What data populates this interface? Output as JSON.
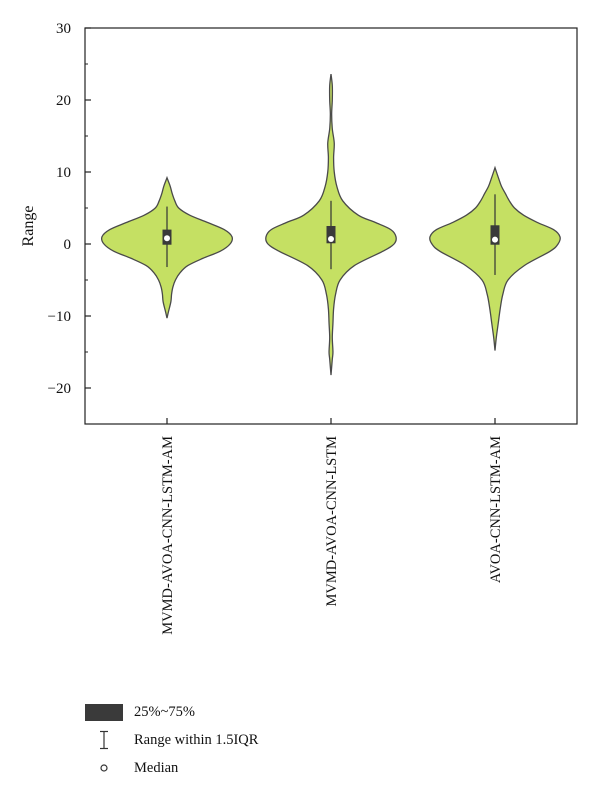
{
  "chart_data": {
    "type": "violin",
    "ylabel": "Range",
    "ylim": [
      -25,
      30
    ],
    "yticks": [
      -20,
      -10,
      0,
      10,
      20,
      30
    ],
    "fill_color": "#c5e063",
    "outline_color": "#4a4a4a",
    "box_color": "#3a3a3a",
    "categories": [
      "MVMD-AVOA-CNN-LSTM-AM",
      "MVMD-AVOA-CNN-LSTM",
      "AVOA-CNN-LSTM-AM"
    ],
    "series": [
      {
        "min": -10.3,
        "max": 9.2,
        "q1": -0.1,
        "q3": 2.0,
        "median": 0.8,
        "whisker_low": -3.2,
        "whisker_high": 5.2,
        "density": [
          [
            -10.3,
            0.0
          ],
          [
            -9.5,
            0.02
          ],
          [
            -8,
            0.06
          ],
          [
            -7,
            0.07
          ],
          [
            -6,
            0.09
          ],
          [
            -5,
            0.13
          ],
          [
            -4,
            0.2
          ],
          [
            -3,
            0.32
          ],
          [
            -2,
            0.55
          ],
          [
            -1,
            0.82
          ],
          [
            0,
            0.97
          ],
          [
            1,
            1.0
          ],
          [
            2,
            0.88
          ],
          [
            3,
            0.62
          ],
          [
            4,
            0.35
          ],
          [
            5,
            0.18
          ],
          [
            6,
            0.12
          ],
          [
            7,
            0.08
          ],
          [
            8,
            0.05
          ],
          [
            9.2,
            0.0
          ]
        ]
      },
      {
        "min": -18.2,
        "max": 23.6,
        "q1": 0.1,
        "q3": 2.5,
        "median": 0.7,
        "whisker_low": -3.5,
        "whisker_high": 6.0,
        "density": [
          [
            -18.2,
            0.0
          ],
          [
            -16,
            0.02
          ],
          [
            -15,
            0.03
          ],
          [
            -13,
            0.02
          ],
          [
            -11,
            0.03
          ],
          [
            -9,
            0.04
          ],
          [
            -7,
            0.07
          ],
          [
            -5,
            0.14
          ],
          [
            -3,
            0.36
          ],
          [
            -1,
            0.8
          ],
          [
            0,
            0.97
          ],
          [
            1,
            1.0
          ],
          [
            2,
            0.92
          ],
          [
            3,
            0.68
          ],
          [
            4,
            0.42
          ],
          [
            6,
            0.18
          ],
          [
            8,
            0.09
          ],
          [
            10,
            0.05
          ],
          [
            12,
            0.04
          ],
          [
            14,
            0.05
          ],
          [
            16,
            0.02
          ],
          [
            18,
            0.01
          ],
          [
            20,
            0.02
          ],
          [
            22,
            0.02
          ],
          [
            23.6,
            0.0
          ]
        ]
      },
      {
        "min": -14.8,
        "max": 10.6,
        "q1": -0.1,
        "q3": 2.6,
        "median": 0.6,
        "whisker_low": -4.3,
        "whisker_high": 6.9,
        "density": [
          [
            -14.8,
            0.0
          ],
          [
            -13,
            0.02
          ],
          [
            -11,
            0.05
          ],
          [
            -9,
            0.08
          ],
          [
            -7,
            0.12
          ],
          [
            -5,
            0.2
          ],
          [
            -3,
            0.45
          ],
          [
            -1,
            0.85
          ],
          [
            0,
            0.97
          ],
          [
            1,
            1.0
          ],
          [
            2,
            0.9
          ],
          [
            3,
            0.65
          ],
          [
            4,
            0.44
          ],
          [
            5,
            0.3
          ],
          [
            6,
            0.22
          ],
          [
            7,
            0.16
          ],
          [
            8,
            0.1
          ],
          [
            9,
            0.06
          ],
          [
            10.6,
            0.0
          ]
        ]
      }
    ]
  },
  "legend": {
    "iqr_label": "25%~75%",
    "whisker_label": "Range within 1.5IQR",
    "median_label": "Median"
  }
}
